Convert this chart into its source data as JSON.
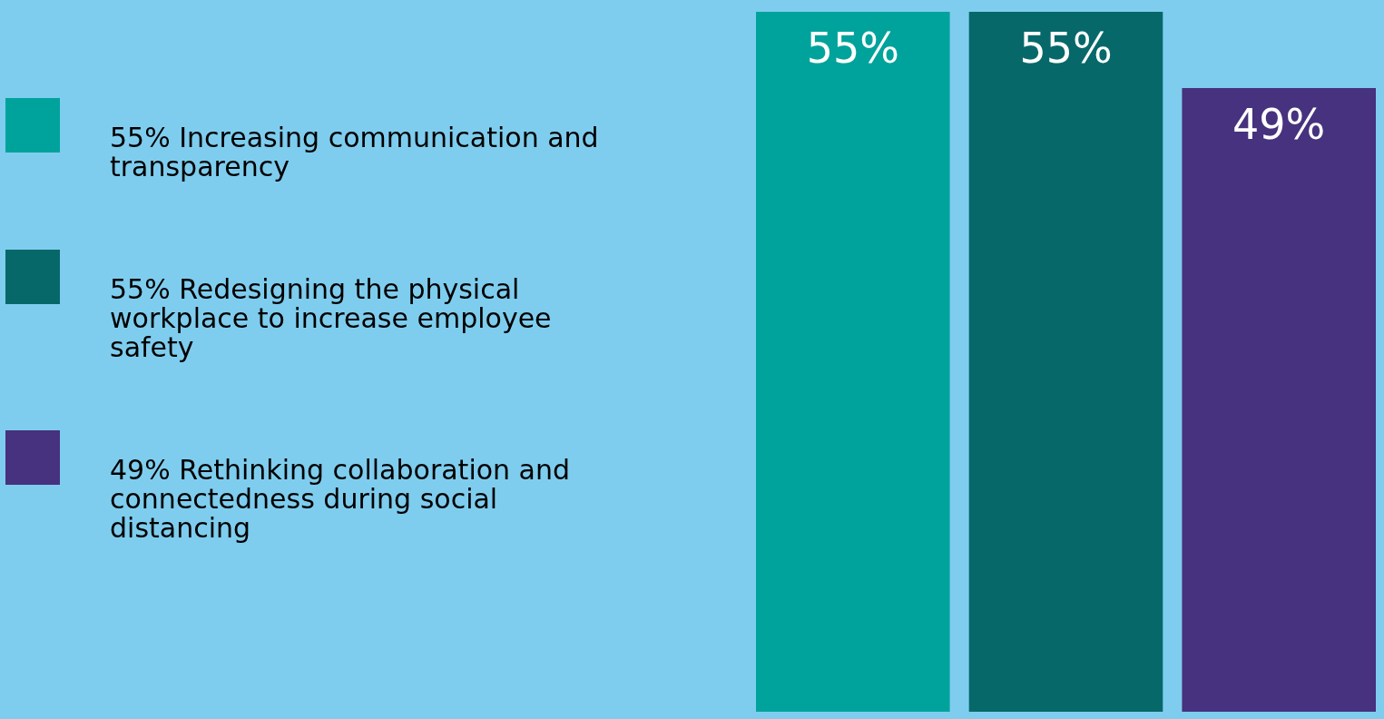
{
  "chart_data": {
    "type": "bar",
    "categories": [
      null
    ],
    "legend": "left",
    "series": [
      {
        "name": "55% Increasing communication and transparency",
        "color": "#00a39b",
        "values": [
          55
        ],
        "value_labels": [
          "55%"
        ]
      },
      {
        "name": "55% Redesigning the physical workplace to increase employee safety",
        "color": "#07686a",
        "values": [
          55
        ],
        "value_labels": [
          "55%"
        ]
      },
      {
        "name": "49% Rethinking collaboration and connectedness during social distancing",
        "color": "#46327e",
        "values": [
          49
        ],
        "value_labels": [
          "49%"
        ]
      }
    ]
  }
}
